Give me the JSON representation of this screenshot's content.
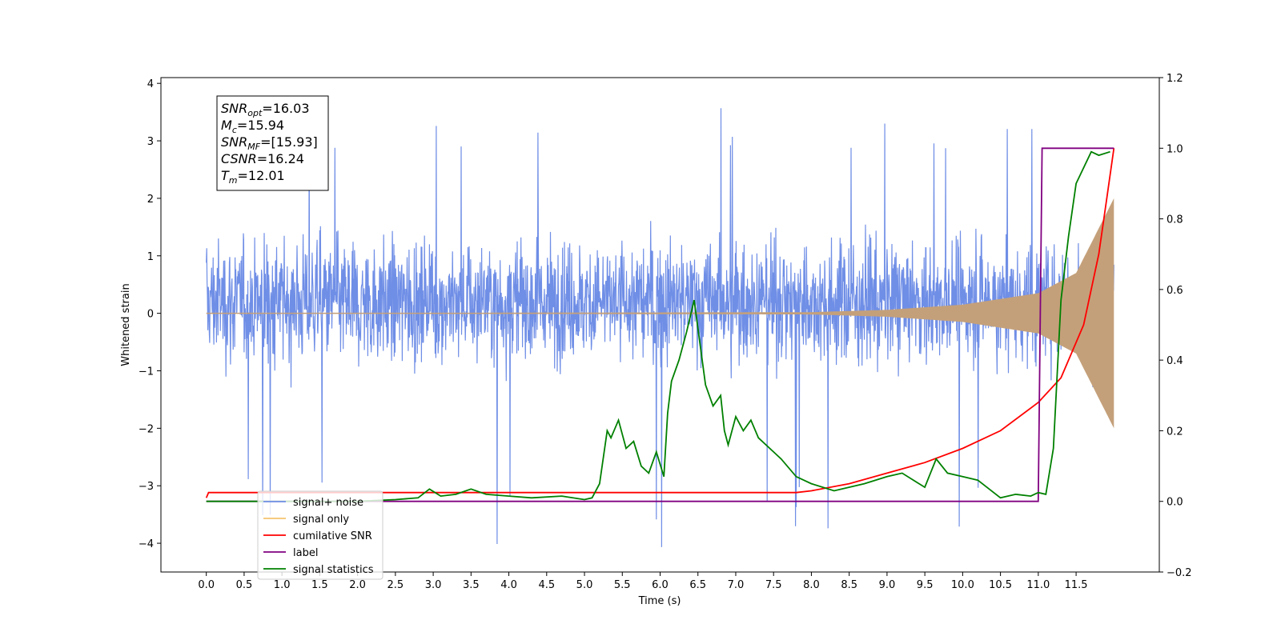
{
  "chart_data": {
    "type": "line",
    "xlabel": "Time (s)",
    "ylabel": "Whitened strain",
    "xlim": [
      -0.6,
      12.6
    ],
    "ylim": [
      -4.5,
      4.1
    ],
    "y2lim": [
      -0.2,
      1.2
    ],
    "x_ticks": [
      "0.0",
      "0.5",
      "1.0",
      "1.5",
      "2.0",
      "2.5",
      "3.0",
      "3.5",
      "4.0",
      "4.5",
      "5.0",
      "5.5",
      "6.0",
      "6.5",
      "7.0",
      "7.5",
      "8.0",
      "8.5",
      "9.0",
      "9.5",
      "10.0",
      "10.5",
      "11.0",
      "11.5"
    ],
    "y_ticks": [
      "4",
      "3",
      "2",
      "1",
      "0",
      "−1",
      "−2",
      "−3",
      "−4"
    ],
    "y2_ticks": [
      "1.2",
      "1.0",
      "0.8",
      "0.6",
      "0.4",
      "0.2",
      "0.0",
      "−0.2"
    ],
    "legend_placement": "lower-left",
    "colors": {
      "signal_noise": "#6f8ee6",
      "signal_only": "#f5c46e",
      "signal_only_fill": "#c4a07a",
      "cumulative_snr": "#ff0000",
      "label": "#800080",
      "signal_statistics": "#008000"
    },
    "series": [
      {
        "name": "signal+ noise",
        "axis": "left",
        "range": [
          -2.0,
          2.4
        ],
        "spikes_max": 3.7,
        "spikes_min": -4.1,
        "x": [
          0.0,
          12.0
        ]
      },
      {
        "name": "signal only",
        "axis": "left",
        "amplitude_x": [
          0.0,
          8.0,
          9.0,
          10.0,
          11.0,
          11.5,
          12.0
        ],
        "amplitude": [
          0.0,
          0.02,
          0.06,
          0.15,
          0.35,
          0.7,
          2.0
        ]
      },
      {
        "name": "cumilative SNR",
        "axis": "right",
        "x": [
          0.0,
          0.03,
          7.8,
          8.0,
          8.5,
          9.0,
          9.5,
          10.0,
          10.5,
          11.0,
          11.3,
          11.6,
          11.8,
          11.9,
          12.0
        ],
        "y": [
          0.01,
          0.025,
          0.025,
          0.03,
          0.05,
          0.08,
          0.11,
          0.15,
          0.2,
          0.28,
          0.35,
          0.5,
          0.7,
          0.85,
          1.0
        ]
      },
      {
        "name": "label",
        "axis": "right",
        "x": [
          0.0,
          11.0,
          11.05,
          12.0
        ],
        "y": [
          0.0,
          0.0,
          1.0,
          1.0
        ]
      },
      {
        "name": "signal statistics",
        "axis": "right",
        "x": [
          0.0,
          0.5,
          1.0,
          1.5,
          2.0,
          2.5,
          2.8,
          2.95,
          3.1,
          3.3,
          3.5,
          3.7,
          4.0,
          4.3,
          4.7,
          5.0,
          5.1,
          5.2,
          5.3,
          5.35,
          5.45,
          5.55,
          5.6,
          5.65,
          5.75,
          5.85,
          5.95,
          6.05,
          6.1,
          6.15,
          6.25,
          6.35,
          6.45,
          6.5,
          6.6,
          6.7,
          6.8,
          6.85,
          6.9,
          7.0,
          7.1,
          7.2,
          7.3,
          7.5,
          7.6,
          7.8,
          8.0,
          8.3,
          8.7,
          9.0,
          9.2,
          9.5,
          9.65,
          9.8,
          10.0,
          10.2,
          10.5,
          10.7,
          10.9,
          11.0,
          11.1,
          11.2,
          11.3,
          11.4,
          11.5,
          11.7,
          11.8,
          11.95
        ],
        "y": [
          0.0,
          0.0,
          0.0,
          0.0,
          0.0,
          0.005,
          0.01,
          0.035,
          0.015,
          0.02,
          0.035,
          0.02,
          0.015,
          0.01,
          0.015,
          0.005,
          0.01,
          0.05,
          0.2,
          0.18,
          0.23,
          0.15,
          0.16,
          0.17,
          0.1,
          0.08,
          0.14,
          0.07,
          0.25,
          0.34,
          0.4,
          0.48,
          0.57,
          0.49,
          0.33,
          0.27,
          0.3,
          0.2,
          0.16,
          0.24,
          0.2,
          0.23,
          0.18,
          0.14,
          0.12,
          0.07,
          0.05,
          0.03,
          0.05,
          0.07,
          0.08,
          0.04,
          0.12,
          0.08,
          0.07,
          0.06,
          0.01,
          0.02,
          0.015,
          0.025,
          0.02,
          0.15,
          0.57,
          0.75,
          0.9,
          0.99,
          0.98,
          0.99
        ]
      }
    ],
    "annotation": {
      "lines": [
        {
          "main": "SNR",
          "sub": "opt",
          "value": "=16.03"
        },
        {
          "main": "M",
          "sub": "c",
          "value": "=15.94"
        },
        {
          "main": "SNR",
          "sub": "MF",
          "value": "=[15.93]"
        },
        {
          "main": "CSNR",
          "sub": "",
          "value": "=16.24"
        },
        {
          "main": "T",
          "sub": "m",
          "value": "=12.01"
        }
      ]
    },
    "legend": [
      {
        "label": "signal+ noise",
        "color": "#6f8ee6"
      },
      {
        "label": "signal only",
        "color": "#f5c46e"
      },
      {
        "label": "cumilative SNR",
        "color": "#ff0000"
      },
      {
        "label": "label",
        "color": "#800080"
      },
      {
        "label": "signal statistics",
        "color": "#008000"
      }
    ]
  }
}
